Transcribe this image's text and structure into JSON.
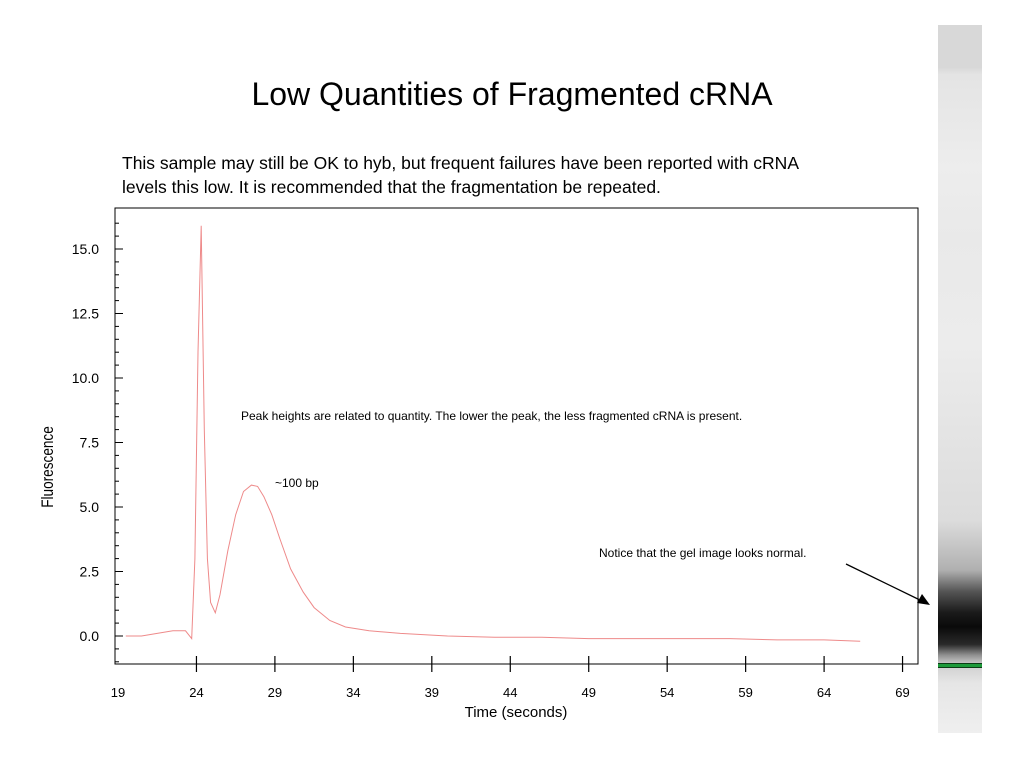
{
  "title": "Low Quantities of Fragmented cRNA",
  "description": "This sample may still be OK to hyb, but frequent failures have been reported with cRNA levels this low. It is recommended that the fragmentation be repeated.",
  "annotations": {
    "peak_note": "Peak heights are related to quantity.  The lower the peak, the less fragmented cRNA is present.",
    "peak_label": "~100 bp",
    "gel_note": "Notice that the gel image looks normal."
  },
  "colors": {
    "trace": "#ee8a8a",
    "axis": "#000000",
    "gel_marker": "#1d9a3a"
  },
  "chart_data": {
    "type": "line",
    "title": "",
    "xlabel": "Time (seconds)",
    "ylabel": "Fluorescence",
    "xlim": [
      19,
      70
    ],
    "ylim": [
      -1.1,
      16.5
    ],
    "x_ticks": [
      "19",
      "24",
      "29",
      "34",
      "39",
      "44",
      "49",
      "54",
      "59",
      "64",
      "69"
    ],
    "y_ticks": [
      "0.0",
      "2.5",
      "5.0",
      "7.5",
      "10.0",
      "12.5",
      "15.0"
    ],
    "grid": false,
    "legend": "none",
    "series": [
      {
        "name": "",
        "x": [
          19.5,
          20.5,
          21.5,
          22.5,
          23.3,
          23.7,
          23.9,
          24.1,
          24.3,
          24.5,
          24.7,
          24.9,
          25.2,
          25.5,
          26.0,
          26.5,
          27.0,
          27.5,
          27.9,
          28.3,
          28.8,
          29.3,
          30.0,
          30.8,
          31.5,
          32.5,
          33.5,
          35.0,
          37.0,
          40.0,
          43.0,
          46.0,
          49.0,
          52.0,
          55.0,
          58.0,
          61.0,
          64.0,
          66.3
        ],
        "y": [
          0.0,
          0.0,
          0.1,
          0.2,
          0.2,
          -0.1,
          3.0,
          11.0,
          15.9,
          8.0,
          3.0,
          1.3,
          0.9,
          1.6,
          3.3,
          4.7,
          5.6,
          5.85,
          5.8,
          5.4,
          4.7,
          3.8,
          2.6,
          1.7,
          1.1,
          0.6,
          0.35,
          0.2,
          0.1,
          0.0,
          -0.05,
          -0.05,
          -0.1,
          -0.1,
          -0.1,
          -0.1,
          -0.15,
          -0.15,
          -0.2
        ]
      }
    ]
  }
}
